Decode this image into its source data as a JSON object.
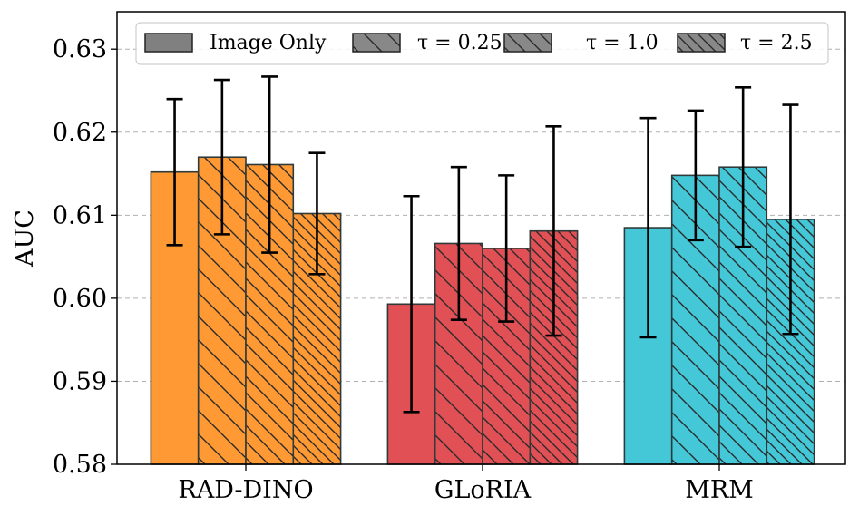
{
  "chart_data": {
    "type": "bar",
    "title": "",
    "xlabel": "",
    "ylabel": "AUC",
    "categories": [
      "RAD-DINO",
      "GLoRIA",
      "MRM"
    ],
    "category_colors": [
      "#ff9933",
      "#e05055",
      "#44c8d8"
    ],
    "ylim": [
      0.58,
      0.6345
    ],
    "yticks": [
      "0.58",
      "0.59",
      "0.60",
      "0.61",
      "0.62",
      "0.63"
    ],
    "grid": true,
    "legend_position": "top",
    "series": [
      {
        "name": "Image Only",
        "hatch": "none",
        "values": [
          0.6152,
          0.5993,
          0.6085
        ],
        "errors": [
          0.0088,
          0.013,
          0.0132
        ]
      },
      {
        "name": "τ = 0.25",
        "hatch": "sparse",
        "values": [
          0.617,
          0.6066,
          0.6148
        ],
        "errors": [
          0.0093,
          0.0092,
          0.0078
        ]
      },
      {
        "name": "τ = 1.0",
        "hatch": "medium",
        "values": [
          0.6161,
          0.606,
          0.6158
        ],
        "errors": [
          0.0106,
          0.0088,
          0.0096
        ]
      },
      {
        "name": "τ = 2.5",
        "hatch": "dense",
        "values": [
          0.6102,
          0.6081,
          0.6095
        ],
        "errors": [
          0.0073,
          0.0126,
          0.0138
        ]
      }
    ]
  }
}
